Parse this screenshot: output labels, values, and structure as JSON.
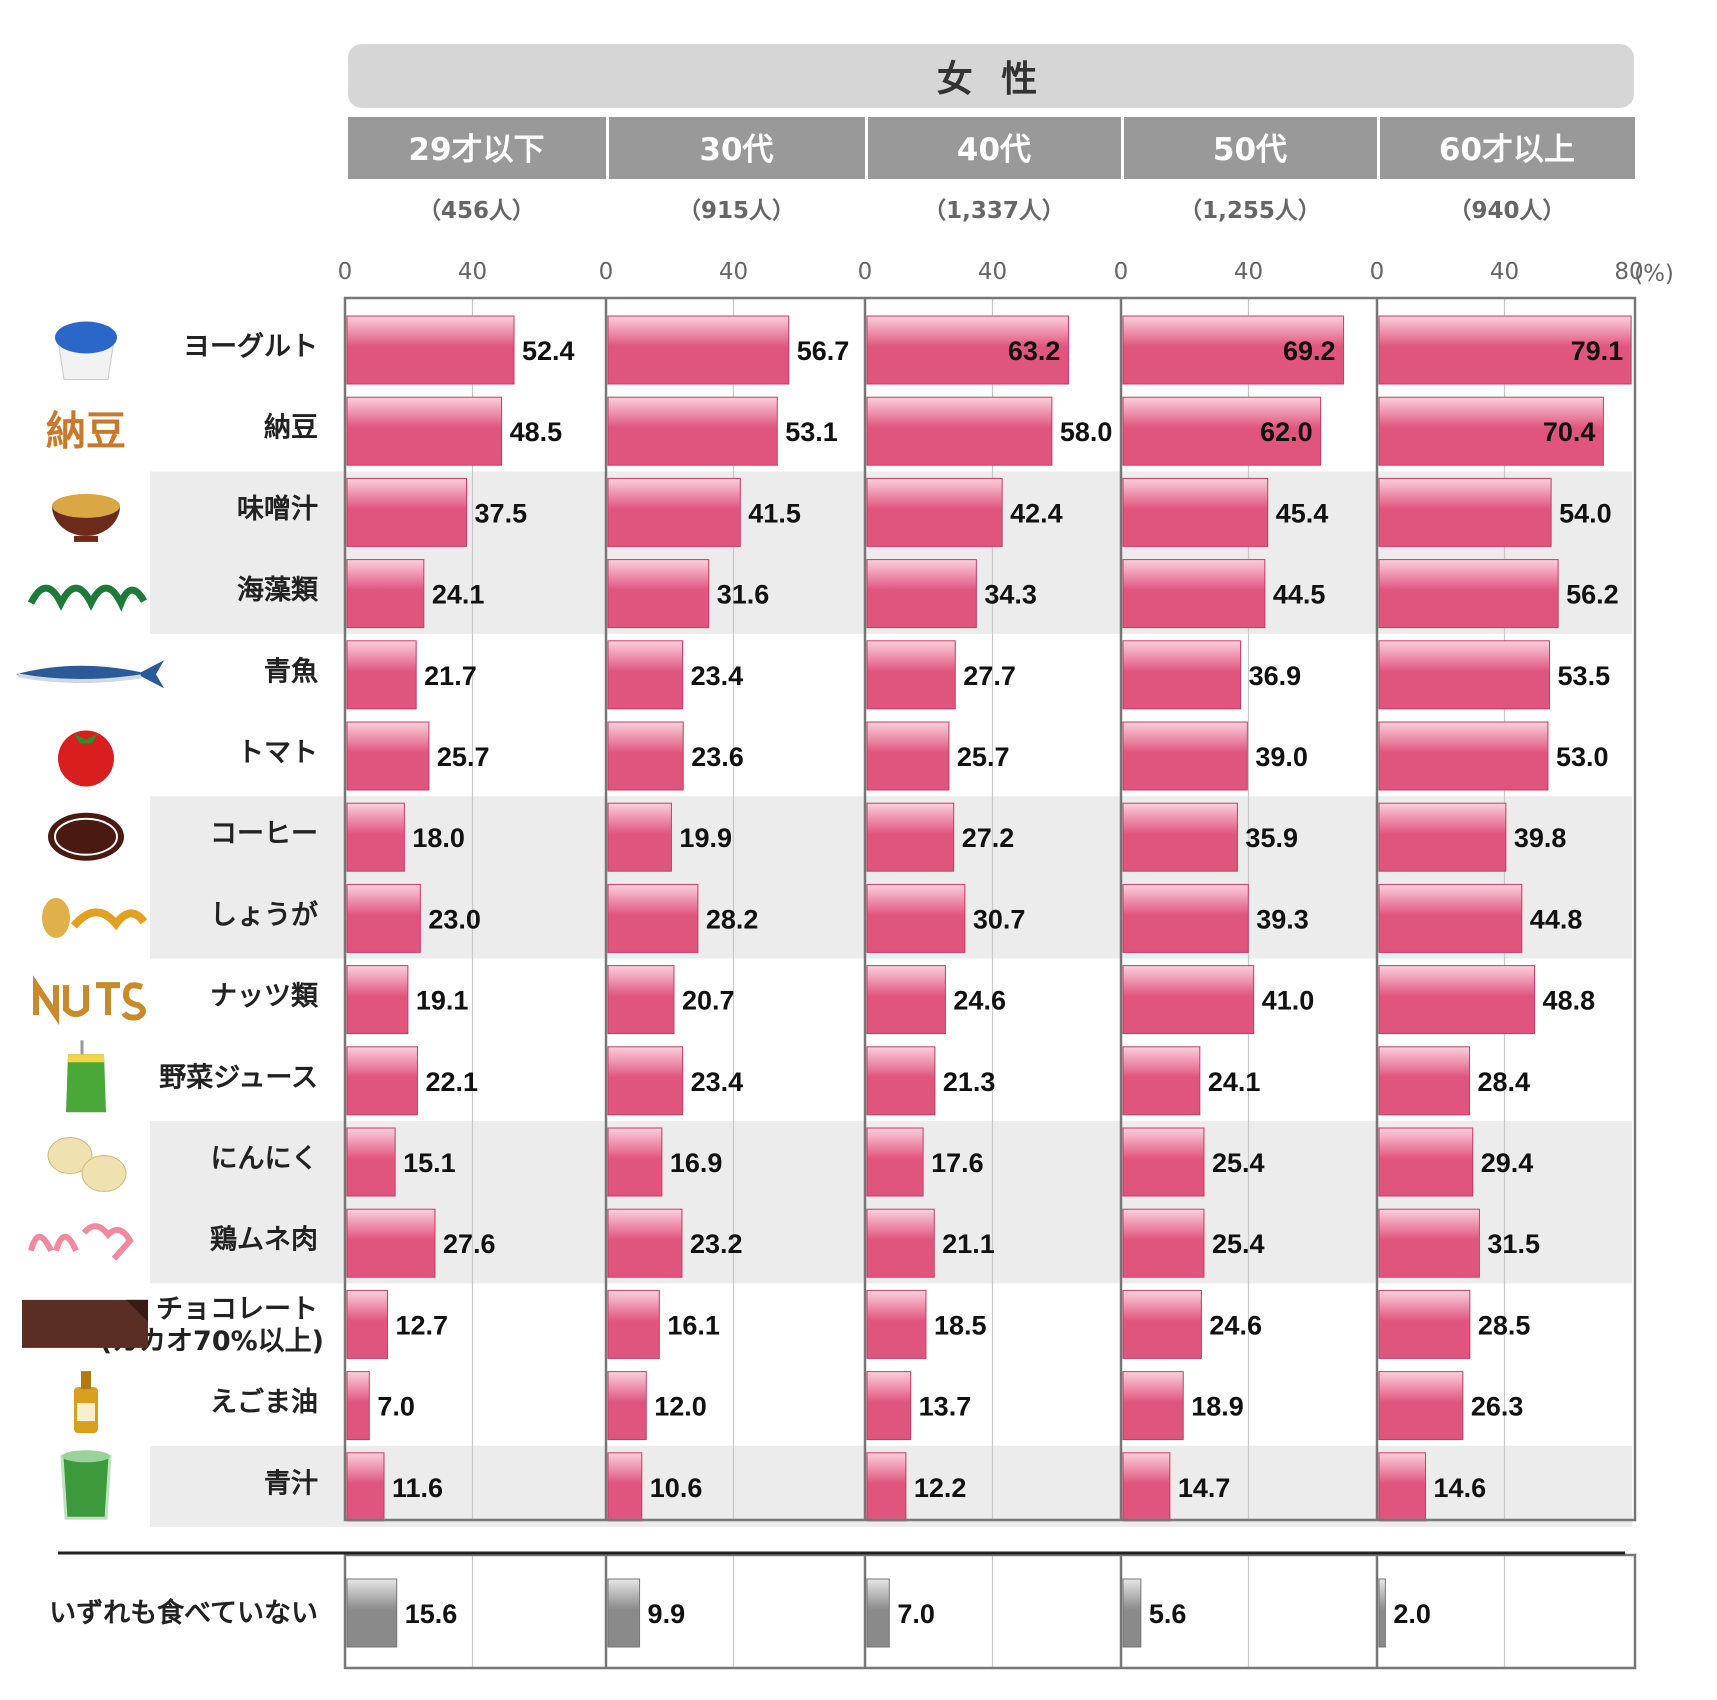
{
  "chart_data": {
    "type": "bar",
    "orientation": "horizontal",
    "group_title": "女 性",
    "unit_label": "(%)",
    "xlim": [
      0,
      80
    ],
    "x_ticks": [
      0,
      40,
      80
    ],
    "x_tick_labels": [
      "0",
      "40"
    ],
    "last_tick_label": "80",
    "panels": [
      {
        "name": "29才以下",
        "n_label": "（456人）"
      },
      {
        "name": "30代",
        "n_label": "（915人）"
      },
      {
        "name": "40代",
        "n_label": "（1,337人）"
      },
      {
        "name": "50代",
        "n_label": "（1,255人）"
      },
      {
        "name": "60才以上",
        "n_label": "（940人）"
      }
    ],
    "categories": [
      {
        "label": "ヨーグルト",
        "icon": "yogurt-icon"
      },
      {
        "label": "納豆",
        "icon": "natto-icon"
      },
      {
        "label": "味噌汁",
        "icon": "miso-soup-icon"
      },
      {
        "label": "海藻類",
        "icon": "seaweed-icon"
      },
      {
        "label": "青魚",
        "icon": "fish-icon"
      },
      {
        "label": "トマト",
        "icon": "tomato-icon"
      },
      {
        "label": "コーヒー",
        "icon": "coffee-icon"
      },
      {
        "label": "しょうが",
        "icon": "ginger-icon"
      },
      {
        "label": "ナッツ類",
        "icon": "nuts-icon"
      },
      {
        "label": "野菜ジュース",
        "icon": "vegetable-juice-icon"
      },
      {
        "label": "にんにく",
        "icon": "garlic-icon"
      },
      {
        "label": "鶏ムネ肉",
        "icon": "chicken-breast-icon"
      },
      {
        "label": "チョコレート",
        "label_sub": "(カカオ70%以上)",
        "icon": "chocolate-icon"
      },
      {
        "label": "えごま油",
        "icon": "egoma-oil-icon"
      },
      {
        "label": "青汁",
        "icon": "aojiru-icon"
      }
    ],
    "series": [
      {
        "values": [
          52.4,
          48.5,
          37.5,
          24.1,
          21.7,
          25.7,
          18.0,
          23.0,
          19.1,
          22.1,
          15.1,
          27.6,
          12.7,
          7.0,
          11.6
        ]
      },
      {
        "values": [
          56.7,
          53.1,
          41.5,
          31.6,
          23.4,
          23.6,
          19.9,
          28.2,
          20.7,
          23.4,
          16.9,
          23.2,
          16.1,
          12.0,
          10.6
        ]
      },
      {
        "values": [
          63.2,
          58.0,
          42.4,
          34.3,
          27.7,
          25.7,
          27.2,
          30.7,
          24.6,
          21.3,
          17.6,
          21.1,
          18.5,
          13.7,
          12.2
        ]
      },
      {
        "values": [
          69.2,
          62.0,
          45.4,
          44.5,
          36.9,
          39.0,
          35.9,
          39.3,
          41.0,
          24.1,
          25.4,
          25.4,
          24.6,
          18.9,
          14.7
        ]
      },
      {
        "values": [
          79.1,
          70.4,
          54.0,
          56.2,
          53.5,
          53.0,
          39.8,
          44.8,
          48.8,
          28.4,
          29.4,
          31.5,
          28.5,
          26.3,
          14.6
        ]
      }
    ],
    "none_category": "いずれも食べていない",
    "none_values": [
      15.6,
      9.9,
      7.0,
      5.6,
      2.0
    ],
    "colors": {
      "bar_main": "#e0557e",
      "bar_light": "#fbd0dd",
      "bar_none": "#8a8a8a",
      "panel_header": "#999999",
      "group_header": "#d6d6d6",
      "band": "#ececec",
      "grid": "#c8c8c8",
      "frame": "#777777"
    },
    "grid": true,
    "legend": "none"
  }
}
